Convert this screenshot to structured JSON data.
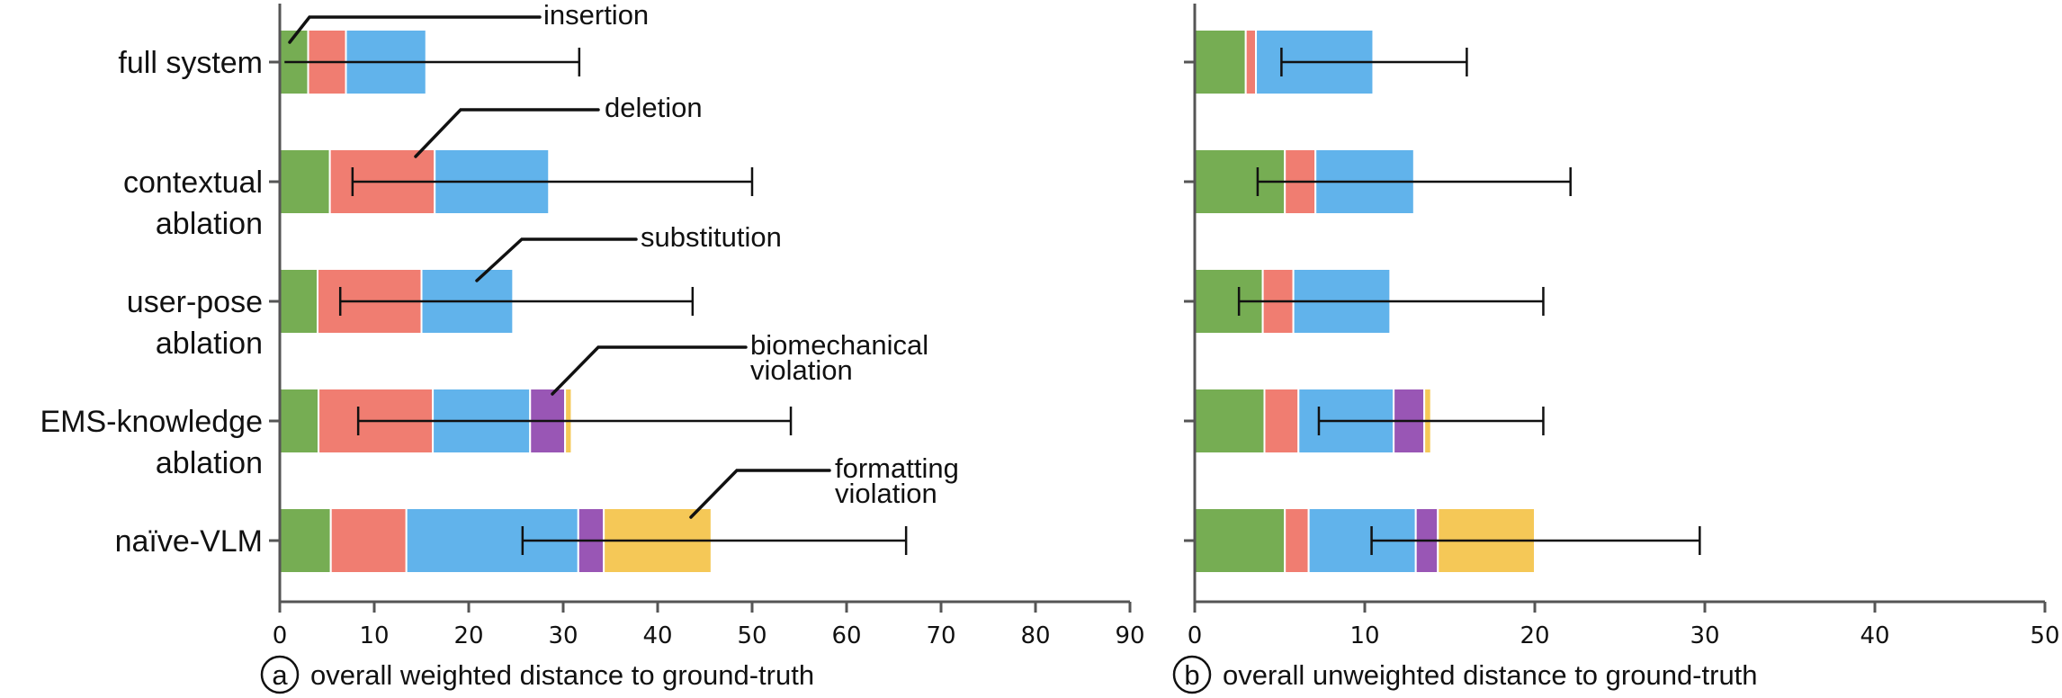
{
  "chart_data": [
    {
      "id": "a",
      "type": "bar",
      "orientation": "horizontal",
      "stacked": true,
      "caption_marker": "a",
      "xlabel": "overall weighted distance to ground-truth",
      "ylabel": "",
      "xlim": [
        0,
        90
      ],
      "xticks": [
        0,
        10,
        20,
        30,
        40,
        50,
        60,
        70,
        80,
        90
      ],
      "grid": false,
      "categories": [
        "full system",
        "contextual ablation",
        "user-pose ablation",
        "EMS-knowledge ablation",
        "naïve-VLM"
      ],
      "series": [
        {
          "name": "insertion",
          "color": "#76ad53",
          "values": [
            3.0,
            5.3,
            4.0,
            4.1,
            5.4
          ]
        },
        {
          "name": "deletion",
          "color": "#f07d71",
          "values": [
            4.0,
            11.1,
            11.0,
            12.1,
            8.0
          ]
        },
        {
          "name": "substitution",
          "color": "#61b3eb",
          "values": [
            8.5,
            12.1,
            9.7,
            10.3,
            18.2
          ]
        },
        {
          "name": "biomechanical violation",
          "color": "#9956b5",
          "values": [
            0,
            0,
            0,
            3.7,
            2.7
          ]
        },
        {
          "name": "formatting violation",
          "color": "#f5c857",
          "values": [
            0,
            0,
            0,
            0.7,
            11.4
          ]
        }
      ],
      "totals": [
        15.5,
        28.5,
        24.7,
        30.9,
        45.7
      ],
      "error_bars": [
        {
          "low": 0.5,
          "high": 31.7
        },
        {
          "low": 7.7,
          "high": 50.0
        },
        {
          "low": 6.4,
          "high": 43.7
        },
        {
          "low": 8.3,
          "high": 54.1
        },
        {
          "low": 25.7,
          "high": 66.3
        }
      ],
      "annotations": [
        {
          "text": [
            "insertion"
          ],
          "category": 0,
          "series": 0
        },
        {
          "text": [
            "deletion"
          ],
          "category": 1,
          "series": 1
        },
        {
          "text": [
            "substitution"
          ],
          "category": 2,
          "series": 2
        },
        {
          "text": [
            "biomechanical",
            "violation"
          ],
          "category": 3,
          "series": 3
        },
        {
          "text": [
            "formatting",
            "violation"
          ],
          "category": 4,
          "series": 4
        }
      ]
    },
    {
      "id": "b",
      "type": "bar",
      "orientation": "horizontal",
      "stacked": true,
      "caption_marker": "b",
      "xlabel": "overall unweighted distance to ground-truth",
      "ylabel": "",
      "xlim": [
        0,
        50
      ],
      "xticks": [
        0,
        10,
        20,
        30,
        40,
        50
      ],
      "grid": false,
      "categories": [
        "full system",
        "contextual ablation",
        "user-pose ablation",
        "EMS-knowledge ablation",
        "naïve-VLM"
      ],
      "series": [
        {
          "name": "insertion",
          "color": "#76ad53",
          "values": [
            3.0,
            5.3,
            4.0,
            4.1,
            5.3
          ]
        },
        {
          "name": "deletion",
          "color": "#f07d71",
          "values": [
            0.6,
            1.8,
            1.8,
            2.0,
            1.4
          ]
        },
        {
          "name": "substitution",
          "color": "#61b3eb",
          "values": [
            6.9,
            5.8,
            5.7,
            5.6,
            6.3
          ]
        },
        {
          "name": "biomechanical violation",
          "color": "#9956b5",
          "values": [
            0,
            0,
            0,
            1.8,
            1.3
          ]
        },
        {
          "name": "formatting violation",
          "color": "#f5c857",
          "values": [
            0,
            0,
            0,
            0.4,
            5.7
          ]
        }
      ],
      "totals": [
        10.5,
        12.9,
        11.5,
        13.9,
        20.0
      ],
      "error_bars": [
        {
          "low": 5.1,
          "high": 16.0
        },
        {
          "low": 3.7,
          "high": 22.1
        },
        {
          "low": 2.6,
          "high": 20.5
        },
        {
          "low": 7.3,
          "high": 20.5
        },
        {
          "low": 10.4,
          "high": 29.7
        }
      ]
    }
  ],
  "labels": {
    "categories": [
      [
        "full system"
      ],
      [
        "contextual",
        "ablation"
      ],
      [
        "user-pose",
        "ablation"
      ],
      [
        "EMS-knowledge",
        "ablation"
      ],
      [
        "naïve-VLM"
      ]
    ],
    "caption_a": "overall weighted distance to ground-truth",
    "caption_b": "overall unweighted distance to ground-truth",
    "marker_a": "a",
    "marker_b": "b"
  }
}
